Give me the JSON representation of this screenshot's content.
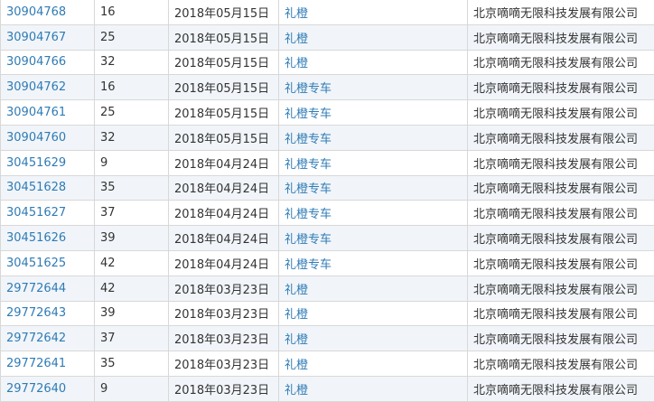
{
  "rows": [
    [
      "30904768",
      "16",
      "2018年05月15日",
      "礼橙",
      "北京嘀嘀无限科技发展有限公司"
    ],
    [
      "30904767",
      "25",
      "2018年05月15日",
      "礼橙",
      "北京嘀嘀无限科技发展有限公司"
    ],
    [
      "30904766",
      "32",
      "2018年05月15日",
      "礼橙",
      "北京嘀嘀无限科技发展有限公司"
    ],
    [
      "30904762",
      "16",
      "2018年05月15日",
      "礼橙专车",
      "北京嘀嘀无限科技发展有限公司"
    ],
    [
      "30904761",
      "25",
      "2018年05月15日",
      "礼橙专车",
      "北京嘀嘀无限科技发展有限公司"
    ],
    [
      "30904760",
      "32",
      "2018年05月15日",
      "礼橙专车",
      "北京嘀嘀无限科技发展有限公司"
    ],
    [
      "30451629",
      "9",
      "2018年04月24日",
      "礼橙专车",
      "北京嘀嘀无限科技发展有限公司"
    ],
    [
      "30451628",
      "35",
      "2018年04月24日",
      "礼橙专车",
      "北京嘀嘀无限科技发展有限公司"
    ],
    [
      "30451627",
      "37",
      "2018年04月24日",
      "礼橙专车",
      "北京嘀嘀无限科技发展有限公司"
    ],
    [
      "30451626",
      "39",
      "2018年04月24日",
      "礼橙专车",
      "北京嘀嘀无限科技发展有限公司"
    ],
    [
      "30451625",
      "42",
      "2018年04月24日",
      "礼橙专车",
      "北京嘀嘀无限科技发展有限公司"
    ],
    [
      "29772644",
      "42",
      "2018年03月23日",
      "礼橙",
      "北京嘀嘀无限科技发展有限公司"
    ],
    [
      "29772643",
      "39",
      "2018年03月23日",
      "礼橙",
      "北京嘀嘀无限科技发展有限公司"
    ],
    [
      "29772642",
      "37",
      "2018年03月23日",
      "礼橙",
      "北京嘀嘀无限科技发展有限公司"
    ],
    [
      "29772641",
      "35",
      "2018年03月23日",
      "礼橙",
      "北京嘀嘀无限科技发展有限公司"
    ],
    [
      "29772640",
      "9",
      "2018年03月23日",
      "礼橙",
      "北京嘀嘀无限科技发展有限公司"
    ]
  ]
}
